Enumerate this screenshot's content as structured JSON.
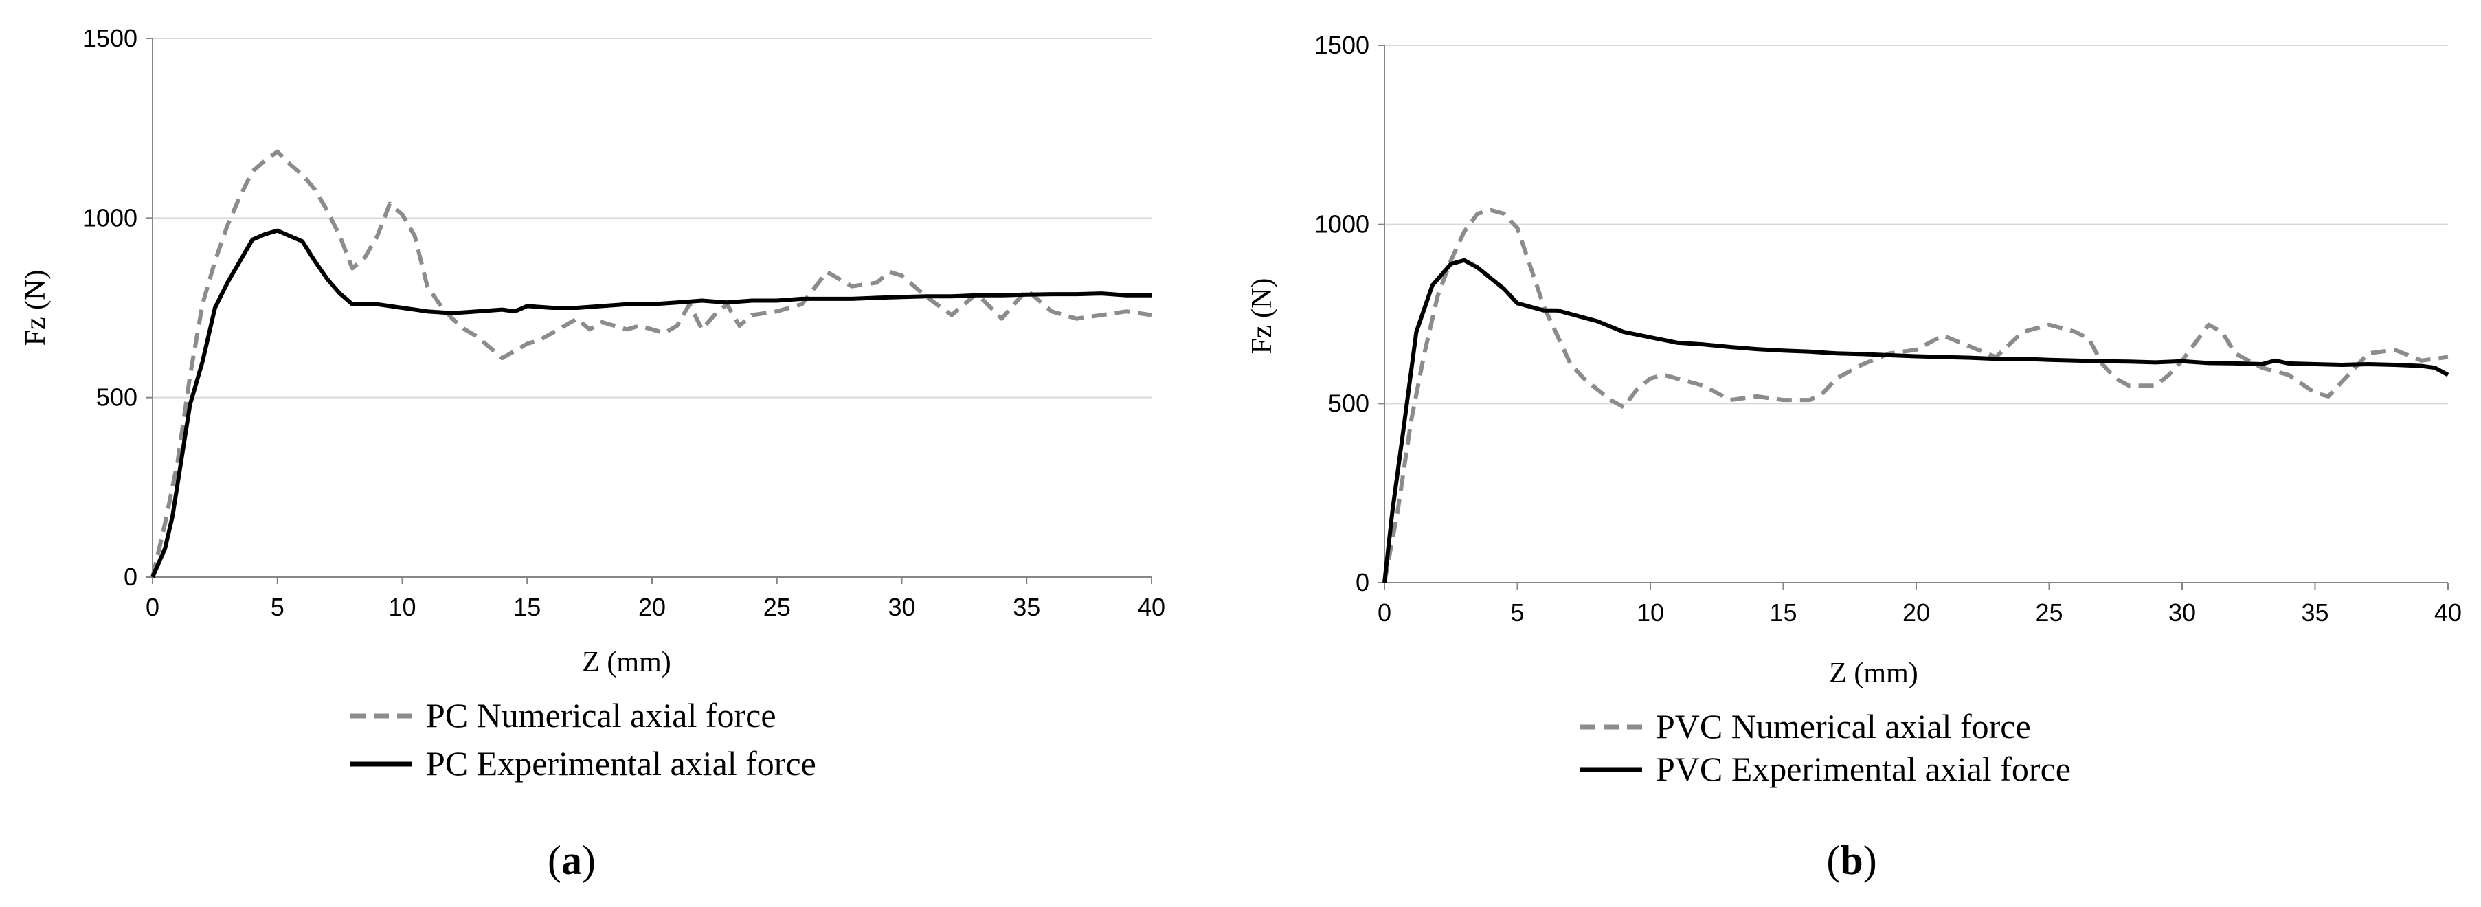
{
  "chart_data": [
    {
      "type": "line",
      "caption": "a",
      "xlabel": "Z (mm)",
      "ylabel": "Fz (N)",
      "xlim": [
        0,
        40
      ],
      "ylim": [
        0,
        1500
      ],
      "x_ticks": [
        "0",
        "5",
        "10",
        "15",
        "20",
        "25",
        "30",
        "35",
        "40"
      ],
      "y_ticks": [
        "0",
        "500",
        "1000",
        "1500"
      ],
      "grid": "horizontal",
      "legend_position": "bottom",
      "series": [
        {
          "name": "PC Numerical axial force",
          "style": "dashed",
          "color": "#8c8c8c",
          "points": [
            [
              0,
              0
            ],
            [
              0.5,
              150
            ],
            [
              1,
              320
            ],
            [
              1.5,
              560
            ],
            [
              2,
              760
            ],
            [
              2.5,
              880
            ],
            [
              3,
              980
            ],
            [
              3.5,
              1060
            ],
            [
              4,
              1130
            ],
            [
              4.5,
              1160
            ],
            [
              5,
              1185
            ],
            [
              5.5,
              1150
            ],
            [
              6,
              1120
            ],
            [
              6.5,
              1080
            ],
            [
              7,
              1020
            ],
            [
              7.5,
              950
            ],
            [
              8,
              860
            ],
            [
              8.5,
              890
            ],
            [
              9,
              950
            ],
            [
              9.5,
              1040
            ],
            [
              10,
              1010
            ],
            [
              10.5,
              950
            ],
            [
              11,
              810
            ],
            [
              11.5,
              760
            ],
            [
              12,
              720
            ],
            [
              12.5,
              690
            ],
            [
              13,
              670
            ],
            [
              13.5,
              640
            ],
            [
              14,
              610
            ],
            [
              14.5,
              630
            ],
            [
              15,
              650
            ],
            [
              15.5,
              660
            ],
            [
              16,
              680
            ],
            [
              16.5,
              700
            ],
            [
              17,
              720
            ],
            [
              17.5,
              690
            ],
            [
              18,
              710
            ],
            [
              18.5,
              700
            ],
            [
              19,
              690
            ],
            [
              19.5,
              700
            ],
            [
              20,
              690
            ],
            [
              20.5,
              680
            ],
            [
              21,
              700
            ],
            [
              21.5,
              760
            ],
            [
              22,
              690
            ],
            [
              22.5,
              730
            ],
            [
              23,
              760
            ],
            [
              23.5,
              700
            ],
            [
              24,
              730
            ],
            [
              25,
              740
            ],
            [
              26,
              760
            ],
            [
              27,
              850
            ],
            [
              28,
              810
            ],
            [
              29,
              820
            ],
            [
              29.5,
              850
            ],
            [
              30,
              840
            ],
            [
              31,
              780
            ],
            [
              32,
              730
            ],
            [
              33,
              790
            ],
            [
              34,
              720
            ],
            [
              35,
              800
            ],
            [
              36,
              740
            ],
            [
              37,
              720
            ],
            [
              38,
              730
            ],
            [
              39,
              740
            ],
            [
              40,
              730
            ]
          ]
        },
        {
          "name": "PC Experimental axial force",
          "style": "solid",
          "color": "#000000",
          "points": [
            [
              0,
              0
            ],
            [
              0.5,
              80
            ],
            [
              0.8,
              170
            ],
            [
              1.5,
              480
            ],
            [
              2,
              600
            ],
            [
              2.5,
              750
            ],
            [
              3,
              820
            ],
            [
              3.5,
              880
            ],
            [
              4,
              940
            ],
            [
              4.5,
              955
            ],
            [
              5,
              965
            ],
            [
              5.5,
              950
            ],
            [
              6,
              935
            ],
            [
              6.5,
              880
            ],
            [
              7,
              830
            ],
            [
              7.5,
              790
            ],
            [
              8,
              760
            ],
            [
              9,
              760
            ],
            [
              10,
              750
            ],
            [
              11,
              740
            ],
            [
              12,
              735
            ],
            [
              13,
              740
            ],
            [
              14,
              745
            ],
            [
              14.5,
              740
            ],
            [
              15,
              755
            ],
            [
              16,
              750
            ],
            [
              17,
              750
            ],
            [
              18,
              755
            ],
            [
              19,
              760
            ],
            [
              20,
              760
            ],
            [
              21,
              765
            ],
            [
              22,
              770
            ],
            [
              23,
              765
            ],
            [
              24,
              770
            ],
            [
              25,
              770
            ],
            [
              26,
              775
            ],
            [
              27,
              775
            ],
            [
              28,
              775
            ],
            [
              29,
              778
            ],
            [
              30,
              780
            ],
            [
              31,
              782
            ],
            [
              32,
              782
            ],
            [
              33,
              785
            ],
            [
              34,
              785
            ],
            [
              35,
              787
            ],
            [
              36,
              788
            ],
            [
              37,
              788
            ],
            [
              38,
              790
            ],
            [
              39,
              785
            ],
            [
              40,
              785
            ]
          ]
        }
      ]
    },
    {
      "type": "line",
      "caption": "b",
      "xlabel": "Z (mm)",
      "ylabel": "Fz (N)",
      "xlim": [
        0,
        40
      ],
      "ylim": [
        0,
        1500
      ],
      "x_ticks": [
        "0",
        "5",
        "10",
        "15",
        "20",
        "25",
        "30",
        "35",
        "40"
      ],
      "y_ticks": [
        "0",
        "500",
        "1000",
        "1500"
      ],
      "grid": "horizontal",
      "legend_position": "bottom",
      "series": [
        {
          "name": "PVC Numerical axial force",
          "style": "dashed",
          "color": "#8c8c8c",
          "points": [
            [
              0,
              0
            ],
            [
              0.5,
              200
            ],
            [
              1,
              450
            ],
            [
              1.5,
              640
            ],
            [
              2,
              800
            ],
            [
              2.5,
              900
            ],
            [
              3,
              980
            ],
            [
              3.5,
              1030
            ],
            [
              4,
              1040
            ],
            [
              4.5,
              1030
            ],
            [
              5,
              990
            ],
            [
              5.5,
              880
            ],
            [
              6,
              770
            ],
            [
              6.5,
              690
            ],
            [
              7,
              610
            ],
            [
              7.5,
              570
            ],
            [
              8,
              540
            ],
            [
              8.5,
              510
            ],
            [
              9,
              490
            ],
            [
              9.5,
              540
            ],
            [
              10,
              570
            ],
            [
              10.5,
              580
            ],
            [
              11,
              570
            ],
            [
              12,
              550
            ],
            [
              13,
              510
            ],
            [
              14,
              520
            ],
            [
              15,
              510
            ],
            [
              16,
              510
            ],
            [
              16.5,
              530
            ],
            [
              17,
              570
            ],
            [
              18,
              610
            ],
            [
              19,
              640
            ],
            [
              20,
              650
            ],
            [
              21,
              690
            ],
            [
              22,
              660
            ],
            [
              23,
              630
            ],
            [
              24,
              700
            ],
            [
              25,
              720
            ],
            [
              26,
              700
            ],
            [
              26.5,
              680
            ],
            [
              27,
              610
            ],
            [
              27.5,
              570
            ],
            [
              28,
              550
            ],
            [
              29,
              550
            ],
            [
              29.5,
              580
            ],
            [
              30,
              620
            ],
            [
              31,
              720
            ],
            [
              31.5,
              700
            ],
            [
              32,
              640
            ],
            [
              33,
              600
            ],
            [
              34,
              580
            ],
            [
              35,
              530
            ],
            [
              35.5,
              520
            ],
            [
              36,
              560
            ],
            [
              37,
              640
            ],
            [
              38,
              650
            ],
            [
              39,
              620
            ],
            [
              40,
              630
            ]
          ]
        },
        {
          "name": "PVC Experimental axial force",
          "style": "solid",
          "color": "#000000",
          "points": [
            [
              0,
              0
            ],
            [
              0.3,
              200
            ],
            [
              0.7,
              420
            ],
            [
              1.2,
              700
            ],
            [
              1.8,
              830
            ],
            [
              2.5,
              890
            ],
            [
              3,
              900
            ],
            [
              3.5,
              880
            ],
            [
              4,
              850
            ],
            [
              4.5,
              820
            ],
            [
              5,
              780
            ],
            [
              5.5,
              770
            ],
            [
              6,
              760
            ],
            [
              6.5,
              760
            ],
            [
              7,
              750
            ],
            [
              8,
              730
            ],
            [
              9,
              700
            ],
            [
              10,
              685
            ],
            [
              11,
              670
            ],
            [
              12,
              665
            ],
            [
              13,
              658
            ],
            [
              14,
              652
            ],
            [
              15,
              648
            ],
            [
              16,
              645
            ],
            [
              17,
              640
            ],
            [
              18,
              638
            ],
            [
              19,
              635
            ],
            [
              20,
              632
            ],
            [
              21,
              630
            ],
            [
              22,
              628
            ],
            [
              23,
              625
            ],
            [
              24,
              625
            ],
            [
              25,
              622
            ],
            [
              26,
              620
            ],
            [
              27,
              618
            ],
            [
              28,
              617
            ],
            [
              29,
              615
            ],
            [
              30,
              618
            ],
            [
              31,
              613
            ],
            [
              32,
              612
            ],
            [
              33,
              610
            ],
            [
              33.5,
              620
            ],
            [
              34,
              612
            ],
            [
              35,
              610
            ],
            [
              36,
              608
            ],
            [
              37,
              610
            ],
            [
              38,
              608
            ],
            [
              39,
              605
            ],
            [
              39.5,
              600
            ],
            [
              40,
              580
            ]
          ]
        }
      ]
    }
  ]
}
